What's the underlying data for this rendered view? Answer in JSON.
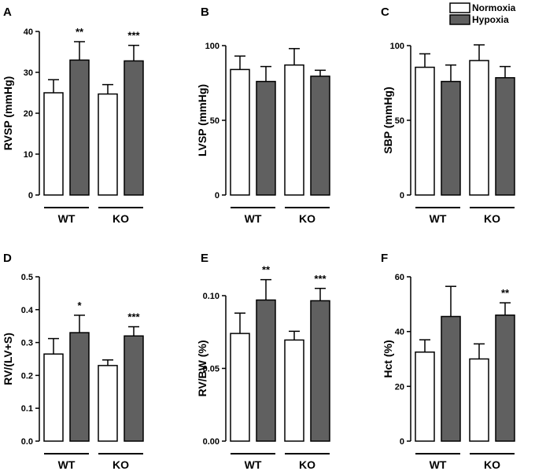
{
  "legend": [
    {
      "name": "Normoxia",
      "color": "#ffffff"
    },
    {
      "name": "Hypoxia",
      "color": "#606060"
    }
  ],
  "groups": [
    "WT",
    "KO"
  ],
  "chart_data": [
    {
      "type": "bar",
      "panel": "A",
      "ylabel": "RVSP (mmHg)",
      "ylim": [
        0,
        40
      ],
      "ticks": [
        0,
        10,
        20,
        30,
        40
      ],
      "tick_labels": [
        "0",
        "10",
        "20",
        "30",
        "40"
      ],
      "categories": [
        "WT",
        "KO"
      ],
      "series": [
        {
          "name": "Normoxia",
          "values": [
            25,
            24.7
          ],
          "errors": [
            3.2,
            2.3
          ]
        },
        {
          "name": "Hypoxia",
          "values": [
            33,
            32.8
          ],
          "errors": [
            4.5,
            3.8
          ]
        }
      ],
      "significance": [
        {
          "group": 0,
          "label": "**"
        },
        {
          "group": 1,
          "label": "***"
        }
      ]
    },
    {
      "type": "bar",
      "panel": "B",
      "ylabel": "LVSP (mmHg)",
      "ylim": [
        0,
        110
      ],
      "ticks": [
        0,
        50,
        100
      ],
      "tick_labels": [
        "0",
        "50",
        "100"
      ],
      "categories": [
        "WT",
        "KO"
      ],
      "series": [
        {
          "name": "Normoxia",
          "values": [
            84,
            87
          ],
          "errors": [
            9,
            11
          ]
        },
        {
          "name": "Hypoxia",
          "values": [
            76,
            79.5
          ],
          "errors": [
            10,
            4
          ]
        }
      ],
      "significance": []
    },
    {
      "type": "bar",
      "panel": "C",
      "ylabel": "SBP (mmHg)",
      "ylim": [
        0,
        110
      ],
      "ticks": [
        0,
        50,
        100
      ],
      "tick_labels": [
        "0",
        "50",
        "100"
      ],
      "categories": [
        "WT",
        "KO"
      ],
      "series": [
        {
          "name": "Normoxia",
          "values": [
            85.5,
            90
          ],
          "errors": [
            9,
            10.5
          ]
        },
        {
          "name": "Hypoxia",
          "values": [
            76,
            78.5
          ],
          "errors": [
            11,
            7.5
          ]
        }
      ],
      "significance": []
    },
    {
      "type": "bar",
      "panel": "D",
      "ylabel": "RV/(LV+S)",
      "ylim": [
        0,
        0.5
      ],
      "ticks": [
        0,
        0.1,
        0.2,
        0.3,
        0.4,
        0.5
      ],
      "tick_labels": [
        "0.0",
        "0.1",
        "0.2",
        "0.3",
        "0.4",
        "0.5"
      ],
      "categories": [
        "WT",
        "KO"
      ],
      "series": [
        {
          "name": "Normoxia",
          "values": [
            0.265,
            0.23
          ],
          "errors": [
            0.047,
            0.017
          ]
        },
        {
          "name": "Hypoxia",
          "values": [
            0.33,
            0.32
          ],
          "errors": [
            0.053,
            0.028
          ]
        }
      ],
      "significance": [
        {
          "group": 0,
          "label": "*"
        },
        {
          "group": 1,
          "label": "***"
        }
      ]
    },
    {
      "type": "bar",
      "panel": "E",
      "ylabel": "RV/BW (%)",
      "ylim": [
        0,
        0.12
      ],
      "ticks": [
        0,
        0.05,
        0.1
      ],
      "tick_labels": [
        "0.00",
        "0.05",
        "0.10"
      ],
      "categories": [
        "WT",
        "KO"
      ],
      "series": [
        {
          "name": "Normoxia",
          "values": [
            0.074,
            0.0695
          ],
          "errors": [
            0.014,
            0.006
          ]
        },
        {
          "name": "Hypoxia",
          "values": [
            0.097,
            0.0965
          ],
          "errors": [
            0.014,
            0.0085
          ]
        }
      ],
      "significance": [
        {
          "group": 0,
          "label": "**"
        },
        {
          "group": 1,
          "label": "***"
        }
      ]
    },
    {
      "type": "bar",
      "panel": "F",
      "ylabel": "Hct (%)",
      "ylim": [
        0,
        60
      ],
      "ticks": [
        0,
        20,
        40,
        60
      ],
      "tick_labels": [
        "0",
        "20",
        "40",
        "60"
      ],
      "categories": [
        "WT",
        "KO"
      ],
      "series": [
        {
          "name": "Normoxia",
          "values": [
            32.5,
            30
          ],
          "errors": [
            4.5,
            5.5
          ]
        },
        {
          "name": "Hypoxia",
          "values": [
            45.5,
            46
          ],
          "errors": [
            11,
            4.5
          ]
        }
      ],
      "significance": [
        {
          "group": 1,
          "label": "**"
        }
      ]
    }
  ]
}
